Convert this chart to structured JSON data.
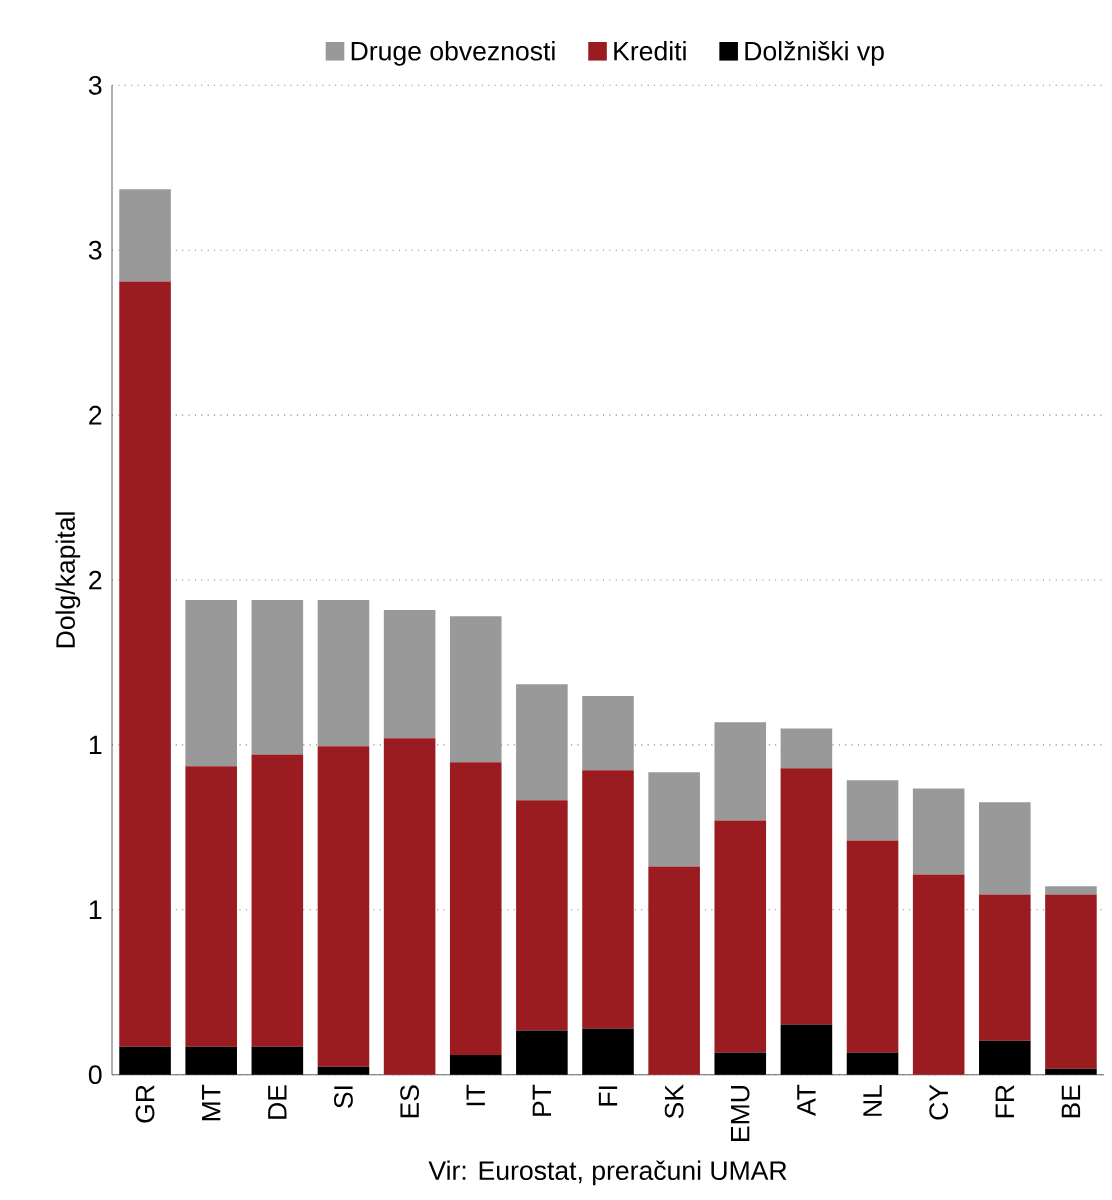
{
  "chart_data": {
    "type": "bar",
    "stacked": true,
    "ylabel": "Dolg/kapital",
    "annotations": [
      "Vir: Eurostat, preračuni UMAR"
    ],
    "categories": [
      "GR",
      "MT",
      "DE",
      "SI",
      "ES",
      "IT",
      "PT",
      "FI",
      "SK",
      "EMU",
      "AT",
      "NL",
      "CY",
      "FR",
      "BE"
    ],
    "series": [
      {
        "name": "Dolžniški vp",
        "color": "#000000",
        "values": [
          0.085,
          0.085,
          0.085,
          0.024,
          0,
          0.06,
          0.134,
          0.14,
          0,
          0.067,
          0.152,
          0.067,
          0,
          0.103,
          0.018
        ]
      },
      {
        "name": "Krediti",
        "color": "#9b1c20",
        "values": [
          2.32,
          0.85,
          0.886,
          0.972,
          1.02,
          0.887,
          0.698,
          0.783,
          0.631,
          0.704,
          0.777,
          0.643,
          0.607,
          0.443,
          0.528
        ]
      },
      {
        "name": "Druge obveznosti",
        "color": "#999999",
        "values": [
          0.28,
          0.504,
          0.468,
          0.443,
          0.389,
          0.443,
          0.352,
          0.225,
          0.286,
          0.298,
          0.121,
          0.183,
          0.261,
          0.28,
          0.025
        ]
      }
    ],
    "ylim": [
      0,
      3
    ],
    "yticks": [
      0,
      {
        "value": 0.5,
        "label": "1"
      },
      1,
      {
        "value": 1.5,
        "label": "2"
      },
      2,
      {
        "value": 2.5,
        "label": "3"
      },
      3
    ],
    "grid": "y",
    "legend": "top"
  }
}
